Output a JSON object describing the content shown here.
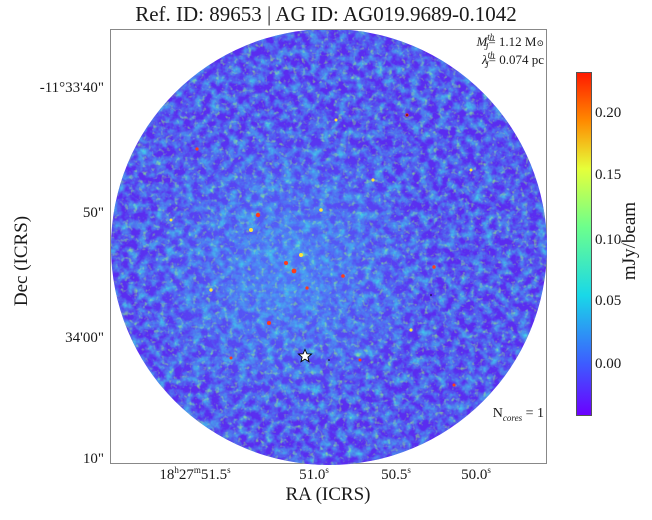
{
  "header": {
    "title": "Ref. ID: 89653 | AG ID: AG019.9689-0.1042"
  },
  "axes": {
    "xlabel": "RA (ICRS)",
    "ylabel": "Dec (ICRS)",
    "yticks": [
      "-11°33'40\"",
      "50\"",
      "34'00\"",
      "10\""
    ],
    "xticks": [
      {
        "main": "18",
        "h": "h",
        "mid": "27",
        "m": "m",
        "val": "51.5",
        "s": "s"
      },
      {
        "main": "",
        "h": "",
        "mid": "",
        "m": "",
        "val": "51.0",
        "s": "s"
      },
      {
        "main": "",
        "h": "",
        "mid": "",
        "m": "",
        "val": "50.5",
        "s": "s"
      },
      {
        "main": "",
        "h": "",
        "mid": "",
        "m": "",
        "val": "50.0",
        "s": "s"
      }
    ]
  },
  "colorbar": {
    "label": "mJy/beam",
    "ticks": [
      "0.20",
      "0.15",
      "0.10",
      "0.05",
      "0.00"
    ],
    "colors": [
      "#6b00ff",
      "#3d5cff",
      "#19d8e8",
      "#6dff8c",
      "#e6ff3a",
      "#ff8a00",
      "#ff1a00"
    ]
  },
  "annotations": {
    "mass_sym": "M",
    "mass_sub": "J",
    "mass_sup": "th",
    "mass_val": "= 1.12 M",
    "mass_unit": "⊙",
    "len_sym": "λ",
    "len_sub": "J",
    "len_sup": "th",
    "len_val": "= 0.074 pc",
    "ncores_pre": "N",
    "ncores_sub": "cores",
    "ncores_val": " = 1"
  },
  "markers": {
    "core_icon": "star-icon"
  }
}
